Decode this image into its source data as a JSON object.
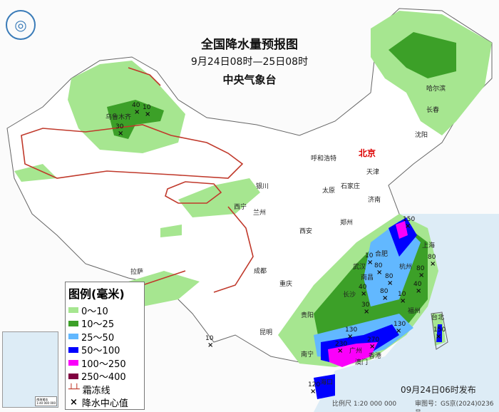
{
  "header": {
    "title": "全国降水量预报图",
    "period": "9月24日08时—25日08时",
    "agency": "中央气象台",
    "logo_icon": "cma-logo"
  },
  "legend": {
    "title": "图例(毫米)",
    "items": [
      {
        "label": "0～10",
        "color": "#a6e690"
      },
      {
        "label": "10～25",
        "color": "#3ca028"
      },
      {
        "label": "25～50",
        "color": "#62b8ff"
      },
      {
        "label": "50～100",
        "color": "#0000fe"
      },
      {
        "label": "100～250",
        "color": "#fa00fa"
      },
      {
        "label": "250～400",
        "color": "#800040"
      }
    ],
    "frost_line": "霜冻线",
    "frost_color": "#c0392b",
    "center": "降水中心值",
    "center_icon": "x-mark"
  },
  "inset": {
    "caption": "南海诸岛",
    "scale": "1:40 000 000"
  },
  "footer": {
    "issued": "09月24日06时发布",
    "scale": "比例尺 1:20 000 000",
    "approval": "审图号：GS京(2024)0236号"
  },
  "cities": [
    {
      "name": "北京",
      "capital": true
    },
    {
      "name": "哈尔滨"
    },
    {
      "name": "长春"
    },
    {
      "name": "沈阳"
    },
    {
      "name": "天津"
    },
    {
      "name": "呼和浩特"
    },
    {
      "name": "石家庄"
    },
    {
      "name": "太原"
    },
    {
      "name": "济南"
    },
    {
      "name": "银川"
    },
    {
      "name": "兰州"
    },
    {
      "name": "西宁"
    },
    {
      "name": "西安"
    },
    {
      "name": "郑州"
    },
    {
      "name": "合肥"
    },
    {
      "name": "上海"
    },
    {
      "name": "杭州"
    },
    {
      "name": "武汉"
    },
    {
      "name": "南昌"
    },
    {
      "name": "长沙"
    },
    {
      "name": "福州"
    },
    {
      "name": "台北"
    },
    {
      "name": "贵阳"
    },
    {
      "name": "昆明"
    },
    {
      "name": "成都"
    },
    {
      "name": "重庆"
    },
    {
      "name": "拉萨"
    },
    {
      "name": "广州"
    },
    {
      "name": "香港"
    },
    {
      "name": "澳门"
    },
    {
      "name": "南宁"
    },
    {
      "name": "海口"
    },
    {
      "name": "乌鲁木齐"
    }
  ],
  "rain_centers": [
    "40",
    "10",
    "30",
    "10",
    "150",
    "10",
    "80",
    "80",
    "40",
    "80",
    "10",
    "80",
    "80",
    "40",
    "30",
    "130",
    "270",
    "230",
    "130",
    "150",
    "120"
  ]
}
